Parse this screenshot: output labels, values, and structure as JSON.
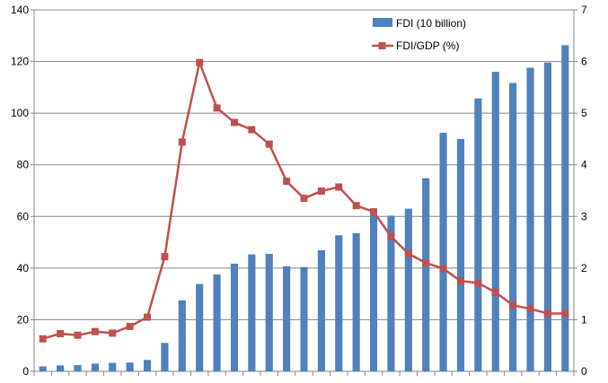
{
  "chart_data": {
    "type": "bar+line",
    "title": "",
    "xlabel": "",
    "ylabel": "",
    "y2label": "",
    "x_count": 31,
    "ylim": [
      0,
      140
    ],
    "y_ticks": [
      0,
      20,
      40,
      60,
      80,
      100,
      120,
      140
    ],
    "y2lim": [
      0,
      7
    ],
    "y2_ticks": [
      0,
      1,
      2,
      3,
      4,
      5,
      6,
      7
    ],
    "grid": true,
    "legend_position": "top-right",
    "series": [
      {
        "name": "FDI (10 billion)",
        "type": "bar",
        "axis": "left",
        "color": "#4f81bd",
        "values": [
          1.9,
          2.3,
          2.4,
          3.0,
          3.3,
          3.4,
          4.4,
          11.0,
          27.5,
          33.8,
          37.5,
          41.7,
          45.3,
          45.5,
          40.7,
          40.4,
          46.9,
          52.7,
          53.5,
          60.6,
          60.3,
          63.0,
          74.8,
          92.4,
          90.0,
          105.7,
          116.0,
          111.7,
          117.6,
          119.6,
          126.3
        ]
      },
      {
        "name": "FDI/GDP (%)",
        "type": "line",
        "axis": "right",
        "color": "#c0504d",
        "values": [
          0.63,
          0.73,
          0.7,
          0.77,
          0.74,
          0.87,
          1.05,
          2.22,
          4.44,
          5.98,
          5.1,
          4.82,
          4.68,
          4.4,
          3.68,
          3.35,
          3.49,
          3.57,
          3.21,
          3.09,
          2.61,
          2.28,
          2.1,
          1.99,
          1.75,
          1.71,
          1.53,
          1.28,
          1.21,
          1.12,
          1.12
        ]
      }
    ]
  }
}
